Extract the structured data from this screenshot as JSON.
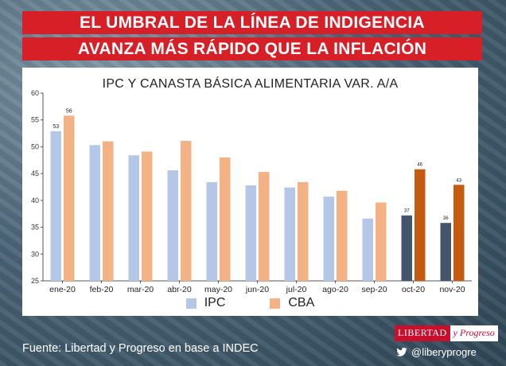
{
  "headline": {
    "line1": "EL UMBRAL DE LA LÍNEA DE INDIGENCIA",
    "line2": "AVANZA MÁS RÁPIDO QUE LA INFLACIÓN"
  },
  "chart_data": {
    "type": "bar",
    "title": "IPC Y CANASTA BÁSICA ALIMENTARIA VAR. A/A",
    "categories": [
      "ene-20",
      "feb-20",
      "mar-20",
      "abr-20",
      "may-20",
      "jun-20",
      "jul-20",
      "ago-20",
      "sep-20",
      "oct-20",
      "nov-20"
    ],
    "series": [
      {
        "name": "IPC",
        "values": [
          52.9,
          50.3,
          48.4,
          45.6,
          43.4,
          42.8,
          42.4,
          40.7,
          36.6,
          37.2,
          35.8
        ]
      },
      {
        "name": "CBA",
        "values": [
          55.8,
          51.0,
          49.1,
          51.1,
          48.0,
          45.3,
          43.4,
          41.8,
          39.6,
          45.8,
          42.9
        ]
      }
    ],
    "data_labels": [
      {
        "category": "ene-20",
        "series": "IPC",
        "text": "53"
      },
      {
        "category": "ene-20",
        "series": "CBA",
        "text": "56"
      },
      {
        "category": "oct-20",
        "series": "IPC",
        "text": "37"
      },
      {
        "category": "oct-20",
        "series": "CBA",
        "text": "46"
      },
      {
        "category": "nov-20",
        "series": "IPC",
        "text": "36"
      },
      {
        "category": "nov-20",
        "series": "CBA",
        "text": "43"
      }
    ],
    "ylim": [
      25,
      60
    ],
    "yticks": [
      25,
      30,
      35,
      40,
      45,
      50,
      55,
      60
    ],
    "legend_position": "bottom-center",
    "colors": {
      "IPC": "#b4c7e7",
      "CBA": "#f4b183",
      "IPC_highlight": "#44546a",
      "CBA_highlight": "#c55a11"
    },
    "highlighted_categories": [
      "oct-20",
      "nov-20"
    ]
  },
  "source": "Fuente: Libertad y Progreso en base a INDEC",
  "brand": {
    "part1": "LIBERTAD",
    "part2": "y Progreso",
    "handle": "@liberyprogre",
    "social_icon": "twitter-bird-icon"
  }
}
